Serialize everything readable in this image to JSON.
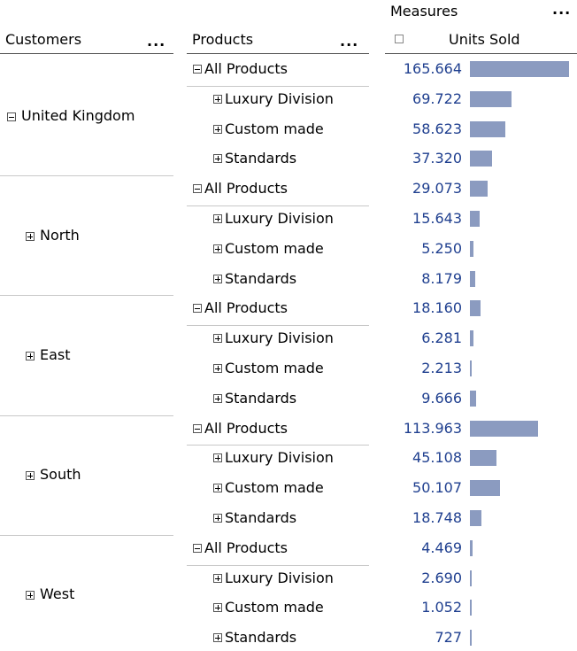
{
  "header": {
    "customers_label": "Customers",
    "products_label": "Products",
    "measures_label": "Measures",
    "units_sold_label": "Units Sold",
    "menu_dots": "..."
  },
  "groups": [
    {
      "customer": "United Kingdom",
      "expanded": true,
      "rows": [
        {
          "product": "All Products",
          "expanded": true,
          "value": "165.664",
          "num": 165664
        },
        {
          "product": "Luxury Division",
          "expanded": false,
          "value": "69.722",
          "num": 69722
        },
        {
          "product": "Custom made",
          "expanded": false,
          "value": "58.623",
          "num": 58623
        },
        {
          "product": "Standards",
          "expanded": false,
          "value": "37.320",
          "num": 37320
        }
      ]
    },
    {
      "customer": "North",
      "expanded": false,
      "rows": [
        {
          "product": "All Products",
          "expanded": true,
          "value": "29.073",
          "num": 29073
        },
        {
          "product": "Luxury Division",
          "expanded": false,
          "value": "15.643",
          "num": 15643
        },
        {
          "product": "Custom made",
          "expanded": false,
          "value": "5.250",
          "num": 5250
        },
        {
          "product": "Standards",
          "expanded": false,
          "value": "8.179",
          "num": 8179
        }
      ]
    },
    {
      "customer": "East",
      "expanded": false,
      "rows": [
        {
          "product": "All Products",
          "expanded": true,
          "value": "18.160",
          "num": 18160
        },
        {
          "product": "Luxury Division",
          "expanded": false,
          "value": "6.281",
          "num": 6281
        },
        {
          "product": "Custom made",
          "expanded": false,
          "value": "2.213",
          "num": 2213
        },
        {
          "product": "Standards",
          "expanded": false,
          "value": "9.666",
          "num": 9666
        }
      ]
    },
    {
      "customer": "South",
      "expanded": false,
      "rows": [
        {
          "product": "All Products",
          "expanded": true,
          "value": "113.963",
          "num": 113963
        },
        {
          "product": "Luxury Division",
          "expanded": false,
          "value": "45.108",
          "num": 45108
        },
        {
          "product": "Custom made",
          "expanded": false,
          "value": "50.107",
          "num": 50107
        },
        {
          "product": "Standards",
          "expanded": false,
          "value": "18.748",
          "num": 18748
        }
      ]
    },
    {
      "customer": "West",
      "expanded": false,
      "rows": [
        {
          "product": "All Products",
          "expanded": true,
          "value": "4.469",
          "num": 4469
        },
        {
          "product": "Luxury Division",
          "expanded": false,
          "value": "2.690",
          "num": 2690
        },
        {
          "product": "Custom made",
          "expanded": false,
          "value": "1.052",
          "num": 1052
        },
        {
          "product": "Standards",
          "expanded": false,
          "value": "727",
          "num": 727
        }
      ]
    }
  ],
  "colors": {
    "value_text": "#1f3f8f",
    "bar": "#8b9bc0"
  }
}
